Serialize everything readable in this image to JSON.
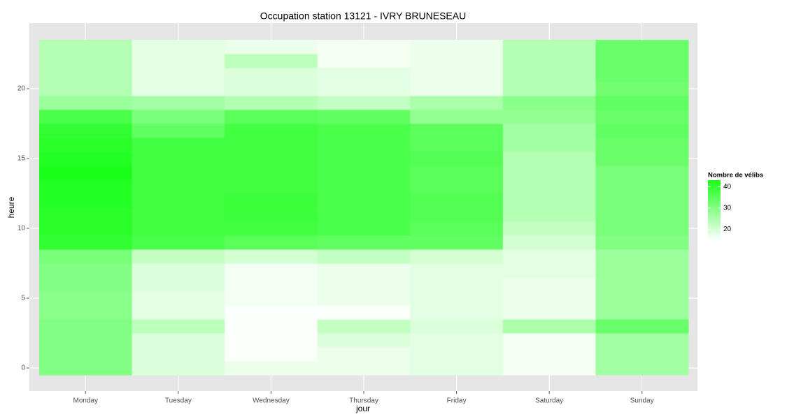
{
  "chart_data": {
    "type": "heatmap",
    "title": "Occupation station 13121 - IVRY BRUNESEAU",
    "x_label": "jour",
    "y_label": "heure",
    "categories": [
      "Monday",
      "Tuesday",
      "Wednesday",
      "Thursday",
      "Friday",
      "Saturday",
      "Sunday"
    ],
    "y": [
      0,
      1,
      2,
      3,
      4,
      5,
      6,
      7,
      8,
      9,
      10,
      11,
      12,
      13,
      14,
      15,
      16,
      17,
      18,
      19,
      20,
      21,
      22,
      23
    ],
    "z": [
      [
        30,
        30,
        30,
        30,
        29,
        29,
        30,
        30,
        31,
        40,
        41,
        41,
        42,
        42,
        43,
        42,
        41,
        40,
        37,
        27,
        24,
        24,
        24,
        24
      ],
      [
        19,
        19,
        19,
        23,
        18,
        18,
        19,
        19,
        22,
        37,
        38,
        38,
        38,
        38,
        38,
        38,
        38,
        34,
        31,
        26,
        18,
        18,
        18,
        18
      ],
      [
        17,
        15,
        15,
        15,
        15,
        16,
        16,
        16,
        20,
        35,
        38,
        39,
        39,
        38,
        38,
        38,
        38,
        38,
        35,
        24,
        19,
        19,
        23,
        17
      ],
      [
        17,
        17,
        19,
        22,
        15,
        17,
        17,
        17,
        22,
        34,
        37,
        37,
        37,
        37,
        37,
        37,
        37,
        37,
        34,
        22,
        18,
        18,
        16,
        16
      ],
      [
        18,
        18,
        18,
        19,
        18,
        18,
        18,
        18,
        20,
        34,
        35,
        36,
        36,
        35,
        35,
        36,
        35,
        35,
        28,
        25,
        17,
        17,
        17,
        17
      ],
      [
        16,
        16,
        16,
        25,
        17,
        17,
        17,
        18,
        18,
        20,
        22,
        24,
        24,
        24,
        24,
        24,
        26,
        26,
        28,
        29,
        24,
        24,
        24,
        24
      ],
      [
        26,
        26,
        26,
        33,
        27,
        27,
        27,
        27,
        27,
        30,
        31,
        31,
        31,
        31,
        31,
        33,
        33,
        34,
        33,
        34,
        32,
        33,
        33,
        33
      ]
    ],
    "ylim": [
      -0.5,
      23.5
    ],
    "yticks": [
      0,
      5,
      10,
      15,
      20
    ],
    "grid": true,
    "legend": {
      "title": "Nombre de vélibs",
      "zlim": [
        14.5,
        43
      ],
      "ticks": [
        20,
        30,
        40
      ],
      "low_color": "#ffffff",
      "high_color": "#1aff1a",
      "position": "right"
    }
  }
}
